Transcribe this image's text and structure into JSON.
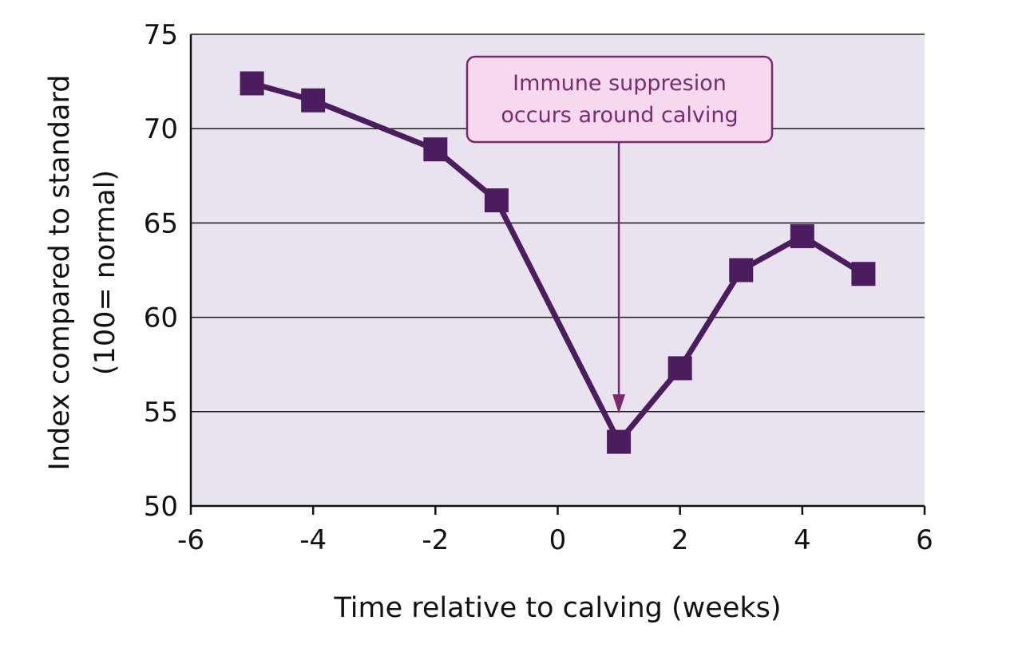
{
  "chart_data": {
    "type": "line",
    "xlabel": "Time relative to calving (weeks)",
    "ylabel_lines": [
      "Index compared to standard",
      "(100= normal)"
    ],
    "xlim": [
      -6,
      6
    ],
    "ylim": [
      50,
      75
    ],
    "x_ticks": [
      -6,
      -4,
      -2,
      0,
      2,
      4,
      6
    ],
    "y_ticks": [
      50,
      55,
      60,
      65,
      70,
      75
    ],
    "grid": "horizontal",
    "series": [
      {
        "x": [
          -5,
          -4,
          -2,
          -1,
          1,
          2,
          3,
          4,
          5
        ],
        "y": [
          72.4,
          71.5,
          68.9,
          66.2,
          53.4,
          57.3,
          62.5,
          64.3,
          62.3
        ],
        "marker": "square",
        "color": "#4b1c5e"
      }
    ],
    "annotation": {
      "lines": [
        "Immune suppresion",
        "occurs around calving"
      ],
      "arrow_to": {
        "x": 1,
        "y": 56
      },
      "text_color": "#7a2b6e",
      "box_fill": "#f7d9ef",
      "border_color": "#7a2b6e"
    },
    "colors": {
      "plot_background": "#e8e3ef",
      "gridline": "#1a1a1a",
      "line": "#4b1c5e"
    }
  }
}
